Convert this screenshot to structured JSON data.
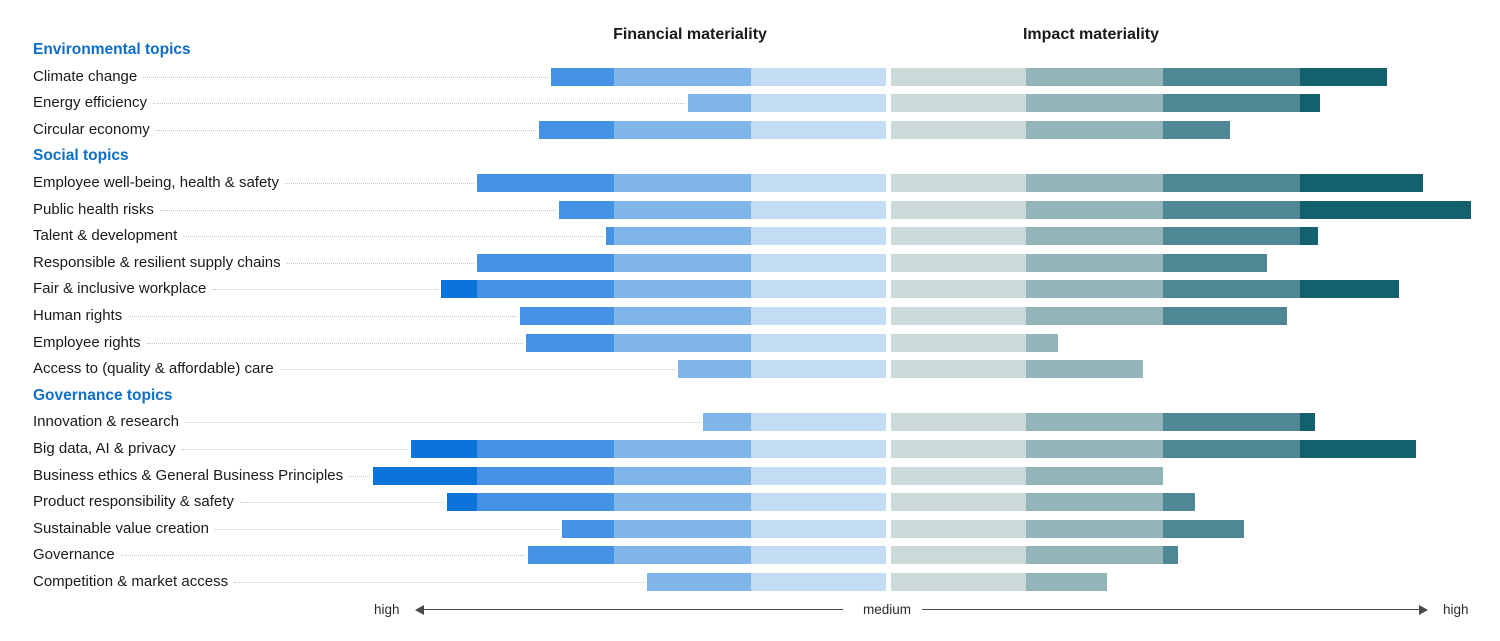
{
  "headers": {
    "financial": "Financial materiality",
    "impact": "Impact materiality"
  },
  "axis": {
    "left_label": "high",
    "center_label": "medium",
    "right_label": "high"
  },
  "colors": {
    "financial_bands": [
      "#c3dcf4",
      "#7fb5e9",
      "#4592e4",
      "#0b74db"
    ],
    "impact_bands": [
      "#cbdad9",
      "#93b5b9",
      "#4f8894",
      "#14606f"
    ],
    "section_header": "#0d6ecb",
    "label_text": "#1a1a1a",
    "leader_dots": "#c4c4c4",
    "axis_line": "#4a4a4a"
  },
  "chart_data": {
    "type": "bar",
    "subtype": "diverging-double-materiality",
    "units": "px_from_center",
    "scale_note": "center = medium materiality, outer ends = high materiality; shade bands every 137px outward from center",
    "band_step": 137,
    "series": [
      {
        "name": "Financial materiality",
        "direction": "left"
      },
      {
        "name": "Impact materiality",
        "direction": "right"
      }
    ],
    "x_axis": {
      "left_end": "high",
      "center": "medium",
      "right_end": "high"
    },
    "sections": [
      {
        "header": "Environmental topics",
        "rows": [
          {
            "label": "Climate change",
            "financial": 335,
            "impact": 496
          },
          {
            "label": "Energy efficiency",
            "financial": 198,
            "impact": 429
          },
          {
            "label": "Circular economy",
            "financial": 347,
            "impact": 339
          }
        ]
      },
      {
        "header": "Social topics",
        "rows": [
          {
            "label": "Employee well-being, health & safety",
            "financial": 409,
            "impact": 532
          },
          {
            "label": "Public health risks",
            "financial": 327,
            "impact": 580
          },
          {
            "label": "Talent & development",
            "financial": 280,
            "impact": 427
          },
          {
            "label": "Responsible & resilient supply chains",
            "financial": 409,
            "impact": 376
          },
          {
            "label": "Fair & inclusive workplace",
            "financial": 445,
            "impact": 508
          },
          {
            "label": "Human rights",
            "financial": 366,
            "impact": 396
          },
          {
            "label": "Employee rights",
            "financial": 360,
            "impact": 167
          },
          {
            "label": "Access to (quality & affordable) care",
            "financial": 208,
            "impact": 252
          }
        ]
      },
      {
        "header": "Governance topics",
        "rows": [
          {
            "label": "Innovation & research",
            "financial": 183,
            "impact": 424
          },
          {
            "label": "Big data, AI & privacy",
            "financial": 475,
            "impact": 525
          },
          {
            "label": "Business ethics & General Business Principles",
            "financial": 513,
            "impact": 272
          },
          {
            "label": "Product responsibility & safety",
            "financial": 439,
            "impact": 304
          },
          {
            "label": "Sustainable value creation",
            "financial": 324,
            "impact": 353
          },
          {
            "label": "Governance",
            "financial": 358,
            "impact": 287
          },
          {
            "label": "Competition & market access",
            "financial": 239,
            "impact": 216
          }
        ]
      }
    ]
  }
}
